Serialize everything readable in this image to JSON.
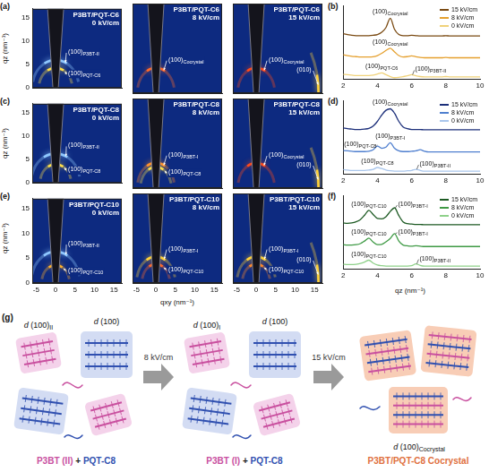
{
  "chart_data": [
    {
      "type": "heatmap",
      "letter": "(a)",
      "title": "P3BT/PQT-C6",
      "subtitle": "0 kV/cm",
      "y_label": "qz (nm⁻¹)",
      "xlim": [
        -6,
        17
      ],
      "xticks": [
        -5,
        0,
        5,
        10,
        15
      ],
      "ylim": [
        0,
        17
      ],
      "yticks": [
        0,
        5,
        10,
        15
      ],
      "grid": false,
      "tick_labels": "y",
      "peaks": [
        {
          "label": "(100)",
          "sub": "P3BT-II",
          "qz": 6.0,
          "color": "#8fc8ff"
        },
        {
          "label": "(100)",
          "sub": "PQT-C6",
          "qz": 4.3,
          "color": "#ffe04a"
        }
      ]
    },
    {
      "type": "heatmap",
      "title": "P3BT/PQT-C6",
      "subtitle": "8 kV/cm",
      "xlim": [
        -6,
        17
      ],
      "xticks": [
        -5,
        0,
        5,
        10,
        15
      ],
      "ylim": [
        0,
        17
      ],
      "yticks": [
        0,
        5,
        10,
        15
      ],
      "grid": false,
      "tick_labels": false,
      "peaks": [
        {
          "label": "(100)",
          "sub": "Cocrystal",
          "qz": 4.8,
          "color": "#ff6a2a"
        }
      ]
    },
    {
      "type": "heatmap",
      "title": "P3BT/PQT-C6",
      "subtitle": "15 kV/cm",
      "xlim": [
        -6,
        17
      ],
      "xticks": [
        -5,
        0,
        5,
        10,
        15
      ],
      "ylim": [
        0,
        17
      ],
      "yticks": [
        0,
        5,
        10,
        15
      ],
      "grid": false,
      "tick_labels": false,
      "peaks": [
        {
          "label": "(100)",
          "sub": "Cocrystal",
          "qz": 4.8,
          "color": "#ff4a1a"
        },
        {
          "label": "(010)",
          "qxy": 16,
          "color": "#ffd23a"
        }
      ]
    },
    {
      "type": "line",
      "letter": "(b)",
      "x": [
        2,
        2.25,
        2.5,
        2.75,
        3,
        3.25,
        3.5,
        3.75,
        4,
        4.25,
        4.5,
        4.75,
        5,
        5.25,
        5.5,
        5.75,
        6,
        6.25,
        6.5,
        6.75,
        7,
        7.25,
        7.5,
        7.75,
        8,
        8.25,
        8.5,
        8.75,
        9,
        9.25,
        9.5,
        9.75,
        10
      ],
      "series": [
        {
          "name": "15 kV/cm",
          "color": "#7a4a12",
          "values": [
            12.3,
            12.1,
            11.9,
            11.8,
            11.8,
            11.8,
            11.8,
            11.9,
            12.1,
            12.7,
            14.0,
            16.5,
            13.5,
            12.1,
            11.8,
            11.8,
            11.9,
            11.8,
            11.7,
            11.7,
            11.7,
            11.7,
            11.7,
            11.7,
            11.8,
            11.7,
            11.7,
            11.7,
            11.7,
            11.7,
            11.7,
            11.7,
            11.7
          ]
        },
        {
          "name": "8 kV/cm",
          "color": "#e5a02e",
          "values": [
            6.6,
            6.4,
            6.2,
            6.1,
            6.0,
            6.0,
            6.0,
            6.1,
            6.4,
            7.0,
            7.8,
            8.4,
            7.4,
            6.4,
            6.0,
            6.1,
            6.3,
            6.1,
            5.9,
            5.8,
            5.8,
            5.8,
            5.8,
            5.8,
            5.9,
            5.8,
            5.8,
            5.8,
            5.8,
            5.8,
            5.8,
            5.8,
            5.8
          ]
        },
        {
          "name": "0 kV/cm",
          "color": "#f0d27a",
          "values": [
            1.3,
            1.2,
            1.1,
            1.0,
            1.0,
            1.0,
            1.0,
            1.1,
            1.4,
            1.7,
            1.2,
            0.7,
            0.4,
            0.5,
            0.7,
            0.9,
            1.2,
            0.9,
            0.7,
            0.6,
            0.6,
            0.6,
            0.6,
            0.6,
            0.7,
            0.6,
            0.6,
            0.6,
            0.6,
            0.6,
            0.6,
            0.6,
            0.6
          ]
        }
      ],
      "xlim": [
        2,
        10
      ],
      "xticks": [
        2,
        4,
        6,
        8,
        10
      ],
      "ylim": [
        0,
        20
      ],
      "grid": false,
      "tick_labels": "x",
      "legend": "upper right",
      "annotations": [
        {
          "label": "(100)",
          "sub": "Cocrystal",
          "series": 0,
          "x": 4.75
        },
        {
          "label": "(100)",
          "sub": "Cocrystal",
          "series": 1,
          "x": 4.75
        },
        {
          "label": "(100)",
          "sub": "PQT-C6",
          "series": 2,
          "x": 4.25
        },
        {
          "label": "(100)",
          "sub": "P3BT-II",
          "series": 2,
          "x": 6
        }
      ]
    },
    {
      "type": "heatmap",
      "letter": "(c)",
      "title": "P3BT/PQT-C8",
      "subtitle": "0 kV/cm",
      "y_label": "qz (nm⁻¹)",
      "xlim": [
        -6,
        17
      ],
      "xticks": [
        -5,
        0,
        5,
        10,
        15
      ],
      "ylim": [
        0,
        17
      ],
      "yticks": [
        0,
        5,
        10,
        15
      ],
      "grid": false,
      "tick_labels": "y",
      "peaks": [
        {
          "label": "(100)",
          "sub": "P3BT-II",
          "qz": 6.3,
          "color": "#8fc8ff"
        },
        {
          "label": "(100)",
          "sub": "PQT-C8",
          "qz": 4.0,
          "color": "#ffe04a"
        }
      ]
    },
    {
      "type": "heatmap",
      "title": "P3BT/PQT-C8",
      "subtitle": "8 kV/cm",
      "xlim": [
        -6,
        17
      ],
      "xticks": [
        -5,
        0,
        5,
        10,
        15
      ],
      "ylim": [
        0,
        17
      ],
      "yticks": [
        0,
        5,
        10,
        15
      ],
      "grid": false,
      "tick_labels": false,
      "peaks": [
        {
          "label": "(100)",
          "sub": "P3BT-I",
          "qz": 4.8,
          "color": "#ff8a2a"
        },
        {
          "label": "(100)",
          "sub": "PQT-C8",
          "qz": 4.0,
          "color": "#ffe04a"
        }
      ]
    },
    {
      "type": "heatmap",
      "title": "P3BT/PQT-C8",
      "subtitle": "15 kV/cm",
      "xlim": [
        -6,
        17
      ],
      "xticks": [
        -5,
        0,
        5,
        10,
        15
      ],
      "ylim": [
        0,
        17
      ],
      "yticks": [
        0,
        5,
        10,
        15
      ],
      "grid": false,
      "tick_labels": false,
      "peaks": [
        {
          "label": "(100)",
          "sub": "Cocrystal",
          "qz": 4.75,
          "color": "#ff4a1a"
        },
        {
          "label": "(010)",
          "qxy": 16,
          "color": "#ffd23a"
        }
      ]
    },
    {
      "type": "line",
      "letter": "(d)",
      "x": [
        2,
        2.25,
        2.5,
        2.75,
        3,
        3.25,
        3.5,
        3.75,
        4,
        4.25,
        4.5,
        4.75,
        5,
        5.25,
        5.5,
        5.75,
        6,
        6.25,
        6.5,
        6.75,
        7,
        7.25,
        7.5,
        7.75,
        8,
        8.25,
        8.5,
        8.75,
        9,
        9.25,
        9.5,
        9.75,
        10
      ],
      "series": [
        {
          "name": "15 kV/cm",
          "color": "#1c2f7a",
          "values": [
            12.5,
            12.3,
            12.2,
            12.1,
            12.1,
            12.2,
            12.4,
            13.0,
            14.3,
            16.0,
            17.3,
            17.7,
            16.5,
            14.3,
            12.8,
            12.3,
            12.1,
            12.1,
            12.1,
            12.0,
            12.0,
            12.0,
            12.0,
            12.0,
            12.0,
            12.0,
            12.0,
            12.0,
            12.0,
            12.0,
            12.0,
            12.0,
            12.0
          ]
        },
        {
          "name": "8 kV/cm",
          "color": "#4f7fcf",
          "values": [
            6.4,
            6.3,
            6.2,
            6.1,
            6.1,
            6.1,
            6.2,
            6.6,
            7.6,
            7.0,
            7.3,
            8.5,
            7.0,
            6.3,
            6.1,
            6.1,
            6.2,
            6.3,
            6.6,
            6.2,
            6.0,
            6.0,
            6.0,
            6.0,
            6.0,
            6.0,
            6.0,
            6.0,
            6.0,
            6.0,
            6.0,
            6.0,
            6.0
          ]
        },
        {
          "name": "0 kV/cm",
          "color": "#a9c6ec",
          "values": [
            1.2,
            1.1,
            1.0,
            1.0,
            1.0,
            1.0,
            1.1,
            1.3,
            1.8,
            1.5,
            1.1,
            0.9,
            0.8,
            0.8,
            0.8,
            0.9,
            1.0,
            1.3,
            1.0,
            0.8,
            0.8,
            0.8,
            0.8,
            0.8,
            0.8,
            0.8,
            0.8,
            0.8,
            0.8,
            0.8,
            0.8,
            0.8,
            0.8
          ]
        }
      ],
      "xlim": [
        2,
        10
      ],
      "xticks": [
        2,
        4,
        6,
        8,
        10
      ],
      "ylim": [
        0,
        20
      ],
      "grid": false,
      "tick_labels": "x",
      "legend": "upper right",
      "annotations": [
        {
          "label": "(100)",
          "sub": "Cocrystal",
          "series": 0,
          "x": 4.75
        },
        {
          "label": "(100)",
          "sub": "PQT-C8",
          "series": 1,
          "x": 4
        },
        {
          "label": "(100)",
          "sub": "P3BT-I",
          "series": 1,
          "x": 4.75
        },
        {
          "label": "(100)",
          "sub": "PQT-C8",
          "series": 2,
          "x": 4
        },
        {
          "label": "(100)",
          "sub": "P3BT-II",
          "series": 2,
          "x": 6.25
        }
      ]
    },
    {
      "type": "heatmap",
      "letter": "(e)",
      "title": "P3BT/PQT-C10",
      "subtitle": "0 kV/cm",
      "y_label": "qz (nm⁻¹)",
      "xlim": [
        -6,
        17
      ],
      "xticks": [
        -5,
        0,
        5,
        10,
        15
      ],
      "ylim": [
        0,
        17
      ],
      "yticks": [
        0,
        5,
        10,
        15
      ],
      "grid": false,
      "tick_labels": true,
      "peaks": [
        {
          "label": "(100)",
          "sub": "P3BT-II",
          "qz": 6.3,
          "color": "#8fc8ff"
        },
        {
          "label": "(100)",
          "sub": "PQT-C10",
          "qz": 3.6,
          "color": "#ffb02a"
        }
      ]
    },
    {
      "type": "heatmap",
      "title": "P3BT/PQT-C10",
      "subtitle": "8 kV/cm",
      "x_label": "qxy (nm⁻¹)",
      "xlim": [
        -6,
        17
      ],
      "xticks": [
        -5,
        0,
        5,
        10,
        15
      ],
      "ylim": [
        0,
        17
      ],
      "yticks": [
        0,
        5,
        10,
        15
      ],
      "grid": false,
      "tick_labels": "x",
      "peaks": [
        {
          "label": "(100)",
          "sub": "P3BT-I",
          "qz": 5.0,
          "color": "#ffd23a"
        },
        {
          "label": "(100)",
          "sub": "PQT-C10",
          "qz": 3.6,
          "color": "#ff6a2a"
        }
      ]
    },
    {
      "type": "heatmap",
      "title": "P3BT/PQT-C10",
      "subtitle": "15 kV/cm",
      "xlim": [
        -6,
        17
      ],
      "xticks": [
        -5,
        0,
        5,
        10,
        15
      ],
      "ylim": [
        0,
        17
      ],
      "yticks": [
        0,
        5,
        10,
        15
      ],
      "grid": false,
      "tick_labels": "x",
      "peaks": [
        {
          "label": "(100)",
          "sub": "P3BT-I",
          "qz": 5.0,
          "color": "#ffd23a"
        },
        {
          "label": "(010)",
          "qxy": 16,
          "color": "#ffd23a"
        },
        {
          "label": "(100)",
          "sub": "PQT-C10",
          "qz": 3.6,
          "color": "#ff8a2a"
        }
      ]
    },
    {
      "type": "line",
      "letter": "(f)",
      "x_label": "qz (nm⁻¹)",
      "x": [
        2,
        2.25,
        2.5,
        2.75,
        3,
        3.25,
        3.5,
        3.75,
        4,
        4.25,
        4.5,
        4.75,
        5,
        5.25,
        5.5,
        5.75,
        6,
        6.25,
        6.5,
        6.75,
        7,
        7.25,
        7.5,
        7.75,
        8,
        8.25,
        8.5,
        8.75,
        9,
        9.25,
        9.5,
        9.75,
        10
      ],
      "series": [
        {
          "name": "15 kV/cm",
          "color": "#1d5a23",
          "values": [
            12.5,
            12.4,
            12.5,
            12.8,
            13.4,
            14.6,
            15.9,
            14.8,
            13.7,
            13.6,
            14.2,
            15.6,
            16.6,
            14.5,
            12.8,
            12.3,
            12.2,
            12.1,
            12.1,
            12.0,
            12.0,
            12.0,
            12.0,
            12.0,
            12.0,
            12.0,
            12.0,
            12.0,
            12.0,
            12.0,
            12.0,
            12.0,
            12.0
          ]
        },
        {
          "name": "8 kV/cm",
          "color": "#3f9a45",
          "values": [
            6.6,
            6.5,
            6.5,
            6.6,
            6.9,
            7.6,
            8.4,
            7.3,
            6.6,
            6.7,
            7.4,
            8.3,
            9.6,
            7.6,
            6.5,
            6.3,
            6.2,
            6.3,
            6.2,
            6.1,
            6.1,
            6.1,
            6.1,
            6.1,
            6.1,
            6.1,
            6.1,
            6.1,
            6.1,
            6.1,
            6.1,
            6.1,
            6.1
          ]
        },
        {
          "name": "0 kV/cm",
          "color": "#8fd18a",
          "values": [
            1.3,
            1.2,
            1.2,
            1.3,
            1.5,
            1.9,
            2.4,
            1.6,
            1.1,
            0.9,
            0.8,
            0.8,
            0.8,
            0.8,
            0.8,
            0.8,
            0.9,
            1.4,
            1.0,
            0.8,
            0.8,
            0.8,
            0.8,
            0.8,
            0.8,
            0.8,
            0.8,
            0.8,
            0.8,
            0.8,
            0.8,
            0.8,
            0.8
          ]
        }
      ],
      "xlim": [
        2,
        10
      ],
      "xticks": [
        2,
        4,
        6,
        8,
        10
      ],
      "ylim": [
        0,
        20
      ],
      "grid": false,
      "tick_labels": "x",
      "legend": "upper right",
      "annotations": [
        {
          "label": "(100)",
          "sub": "PQT-C10",
          "series": 0,
          "x": 3.5
        },
        {
          "label": "(100)",
          "sub": "P3BT-I",
          "series": 0,
          "x": 5
        },
        {
          "label": "(100)",
          "sub": "PQT-C10",
          "series": 1,
          "x": 3.5
        },
        {
          "label": "(100)",
          "sub": "P3BT-I",
          "series": 1,
          "x": 5
        },
        {
          "label": "(100)",
          "sub": "PQT-C10",
          "series": 2,
          "x": 3.5
        },
        {
          "label": "(100)",
          "sub": "P3BT-II",
          "series": 2,
          "x": 6.25
        }
      ]
    }
  ],
  "schematic": {
    "letter": "(g)",
    "stages": [
      {
        "caption": [
          {
            "text": "P3BT (II)",
            "color": "#c9509f"
          },
          {
            "text": "+",
            "color": "#222222"
          },
          {
            "text": "PQT-C8",
            "color": "#3050b0"
          }
        ],
        "d_labels": [
          {
            "var": "d",
            "text": "(100)",
            "sub": "II"
          },
          {
            "var": "d",
            "text": "(100)"
          }
        ]
      },
      {
        "caption": [
          {
            "text": "P3BT (I)",
            "color": "#c9509f"
          },
          {
            "text": "+",
            "color": "#222222"
          },
          {
            "text": "PQT-C8",
            "color": "#3050b0"
          }
        ],
        "d_labels": [
          {
            "var": "d",
            "text": "(100)",
            "sub": "I"
          },
          {
            "var": "d",
            "text": "(100)"
          }
        ]
      },
      {
        "caption": [
          {
            "text": "P3BT/PQT-C8 Cocrystal",
            "color": "#e07040"
          }
        ],
        "d_labels": [
          {
            "var": "d",
            "text": "(100)",
            "sub": "Cocrystal"
          }
        ]
      }
    ],
    "arrows": [
      "8 kV/cm",
      "15 kV/cm"
    ]
  }
}
